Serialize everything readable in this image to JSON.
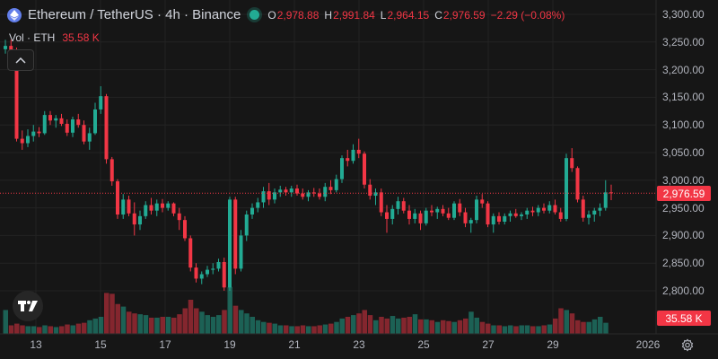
{
  "legend": {
    "title": "Ethereum / TetherUS · 4h · Binance",
    "ohlc": [
      {
        "k": "O",
        "v": "2,978.88"
      },
      {
        "k": "H",
        "v": "2,991.84"
      },
      {
        "k": "L",
        "v": "2,964.15"
      },
      {
        "k": "C",
        "v": "2,976.59"
      },
      {
        "k": "",
        "v": "−2.29 (−0.08%)"
      }
    ]
  },
  "volume_legend": {
    "label": "Vol · ETH",
    "value": "35.58 K"
  },
  "price_axis": {
    "labels": [
      "3,300.00",
      "3,250.00",
      "3,200.00",
      "3,150.00",
      "3,100.00",
      "3,050.00",
      "3,000.00",
      "2,950.00",
      "2,900.00",
      "2,850.00",
      "2,800.00"
    ],
    "current_price": "2,976.59",
    "current_volume": "35.58 K"
  },
  "time_axis": {
    "labels": [
      "13",
      "15",
      "17",
      "19",
      "21",
      "23",
      "25",
      "27",
      "29",
      "2026"
    ]
  },
  "colors": {
    "up": "#22ab94",
    "down": "#f23645",
    "background": "#161616",
    "grid": "#232323"
  },
  "chart_data": {
    "type": "candlestick",
    "ylim": [
      2775,
      3310
    ],
    "current_price": 2976.59,
    "candles": [
      [
        3237,
        3254,
        3229,
        3243
      ],
      [
        3243,
        3254,
        3225,
        3232
      ],
      [
        3232,
        3240,
        3070,
        3075
      ],
      [
        3075,
        3090,
        3055,
        3067
      ],
      [
        3067,
        3092,
        3060,
        3080
      ],
      [
        3080,
        3100,
        3070,
        3088
      ],
      [
        3088,
        3096,
        3078,
        3085
      ],
      [
        3085,
        3125,
        3082,
        3118
      ],
      [
        3118,
        3125,
        3100,
        3108
      ],
      [
        3108,
        3118,
        3095,
        3112
      ],
      [
        3112,
        3120,
        3098,
        3102
      ],
      [
        3102,
        3110,
        3080,
        3086
      ],
      [
        3086,
        3115,
        3078,
        3110
      ],
      [
        3110,
        3120,
        3095,
        3100
      ],
      [
        3100,
        3108,
        3065,
        3070
      ],
      [
        3070,
        3095,
        3055,
        3085
      ],
      [
        3085,
        3140,
        3082,
        3128
      ],
      [
        3128,
        3170,
        3120,
        3152
      ],
      [
        3152,
        3156,
        3030,
        3038
      ],
      [
        3038,
        3042,
        2990,
        2998
      ],
      [
        2998,
        3002,
        2930,
        2938
      ],
      [
        2938,
        2975,
        2930,
        2965
      ],
      [
        2965,
        2972,
        2935,
        2940
      ],
      [
        2940,
        2960,
        2900,
        2920
      ],
      [
        2920,
        2945,
        2910,
        2935
      ],
      [
        2935,
        2962,
        2930,
        2955
      ],
      [
        2955,
        2968,
        2938,
        2945
      ],
      [
        2945,
        2965,
        2935,
        2958
      ],
      [
        2958,
        2966,
        2942,
        2950
      ],
      [
        2950,
        2962,
        2945,
        2958
      ],
      [
        2958,
        2960,
        2935,
        2940
      ],
      [
        2940,
        2950,
        2910,
        2928
      ],
      [
        2928,
        2935,
        2890,
        2895
      ],
      [
        2895,
        2900,
        2835,
        2842
      ],
      [
        2842,
        2850,
        2815,
        2822
      ],
      [
        2822,
        2835,
        2812,
        2830
      ],
      [
        2830,
        2845,
        2825,
        2838
      ],
      [
        2838,
        2850,
        2830,
        2840
      ],
      [
        2840,
        2858,
        2835,
        2852
      ],
      [
        2852,
        2860,
        2800,
        2806
      ],
      [
        2806,
        2970,
        2800,
        2965
      ],
      [
        2965,
        2970,
        2830,
        2840
      ],
      [
        2840,
        2910,
        2835,
        2900
      ],
      [
        2900,
        2945,
        2890,
        2938
      ],
      [
        2938,
        2958,
        2930,
        2950
      ],
      [
        2950,
        2968,
        2942,
        2960
      ],
      [
        2960,
        2988,
        2950,
        2980
      ],
      [
        2980,
        2995,
        2955,
        2965
      ],
      [
        2965,
        2985,
        2958,
        2978
      ],
      [
        2978,
        2990,
        2970,
        2983
      ],
      [
        2983,
        2988,
        2972,
        2978
      ],
      [
        2978,
        2990,
        2970,
        2985
      ],
      [
        2985,
        2992,
        2972,
        2976
      ],
      [
        2976,
        2985,
        2965,
        2970
      ],
      [
        2970,
        2982,
        2962,
        2978
      ],
      [
        2978,
        2986,
        2970,
        2976
      ],
      [
        2976,
        2985,
        2965,
        2970
      ],
      [
        2970,
        2995,
        2962,
        2988
      ],
      [
        2988,
        3000,
        2975,
        2982
      ],
      [
        2982,
        3010,
        2978,
        3002
      ],
      [
        3002,
        3045,
        2995,
        3040
      ],
      [
        3040,
        3055,
        3025,
        3035
      ],
      [
        3035,
        3065,
        3030,
        3055
      ],
      [
        3055,
        3075,
        3040,
        3048
      ],
      [
        3048,
        3052,
        2985,
        2992
      ],
      [
        2992,
        3002,
        2965,
        2972
      ],
      [
        2972,
        2985,
        2955,
        2978
      ],
      [
        2978,
        2985,
        2935,
        2942
      ],
      [
        2942,
        2955,
        2905,
        2930
      ],
      [
        2930,
        2955,
        2920,
        2948
      ],
      [
        2948,
        2970,
        2938,
        2962
      ],
      [
        2962,
        2968,
        2940,
        2945
      ],
      [
        2945,
        2955,
        2920,
        2930
      ],
      [
        2930,
        2948,
        2922,
        2940
      ],
      [
        2940,
        2945,
        2910,
        2922
      ],
      [
        2922,
        2950,
        2918,
        2945
      ],
      [
        2945,
        2955,
        2935,
        2942
      ],
      [
        2942,
        2952,
        2930,
        2948
      ],
      [
        2948,
        2955,
        2935,
        2940
      ],
      [
        2940,
        2950,
        2928,
        2932
      ],
      [
        2932,
        2962,
        2928,
        2958
      ],
      [
        2958,
        2966,
        2935,
        2942
      ],
      [
        2942,
        2950,
        2915,
        2922
      ],
      [
        2922,
        2932,
        2905,
        2928
      ],
      [
        2928,
        2972,
        2922,
        2965
      ],
      [
        2965,
        2975,
        2950,
        2958
      ],
      [
        2958,
        2962,
        2915,
        2920
      ],
      [
        2920,
        2940,
        2905,
        2935
      ],
      [
        2935,
        2942,
        2920,
        2925
      ],
      [
        2925,
        2940,
        2920,
        2935
      ],
      [
        2935,
        2945,
        2925,
        2940
      ],
      [
        2940,
        2948,
        2932,
        2935
      ],
      [
        2935,
        2942,
        2928,
        2938
      ],
      [
        2938,
        2950,
        2930,
        2945
      ],
      [
        2945,
        2952,
        2935,
        2942
      ],
      [
        2942,
        2955,
        2935,
        2950
      ],
      [
        2950,
        2958,
        2940,
        2945
      ],
      [
        2945,
        2962,
        2940,
        2955
      ],
      [
        2955,
        2965,
        2938,
        2942
      ],
      [
        2942,
        2950,
        2925,
        2930
      ],
      [
        2930,
        3048,
        2926,
        3040
      ],
      [
        3040,
        3058,
        3015,
        3022
      ],
      [
        3022,
        3025,
        2960,
        2965
      ],
      [
        2965,
        2972,
        2925,
        2932
      ],
      [
        2932,
        2945,
        2920,
        2938
      ],
      [
        2938,
        2950,
        2925,
        2945
      ],
      [
        2945,
        2958,
        2935,
        2950
      ],
      [
        2950,
        3000,
        2945,
        2978
      ],
      [
        2978,
        2992,
        2964,
        2977
      ]
    ],
    "volumes": [
      28,
      10,
      12,
      10,
      9,
      9,
      8,
      10,
      9,
      8,
      9,
      11,
      10,
      12,
      13,
      16,
      18,
      20,
      48,
      47,
      35,
      32,
      26,
      24,
      23,
      22,
      19,
      19,
      20,
      20,
      19,
      23,
      30,
      40,
      30,
      26,
      22,
      20,
      22,
      28,
      55,
      33,
      28,
      24,
      20,
      16,
      14,
      13,
      12,
      10,
      10,
      9,
      9,
      10,
      9,
      9,
      10,
      11,
      12,
      14,
      18,
      20,
      22,
      24,
      28,
      22,
      16,
      20,
      18,
      21,
      18,
      19,
      20,
      23,
      17,
      17,
      16,
      14,
      16,
      15,
      14,
      16,
      18,
      26,
      19,
      14,
      12,
      10,
      10,
      9,
      10,
      9,
      10,
      10,
      9,
      9,
      10,
      11,
      18,
      30,
      28,
      24,
      16,
      14,
      14,
      17,
      20,
      13
    ],
    "x_labels": [
      "13",
      "15",
      "17",
      "19",
      "21",
      "23",
      "25",
      "27",
      "29",
      "2026"
    ]
  }
}
